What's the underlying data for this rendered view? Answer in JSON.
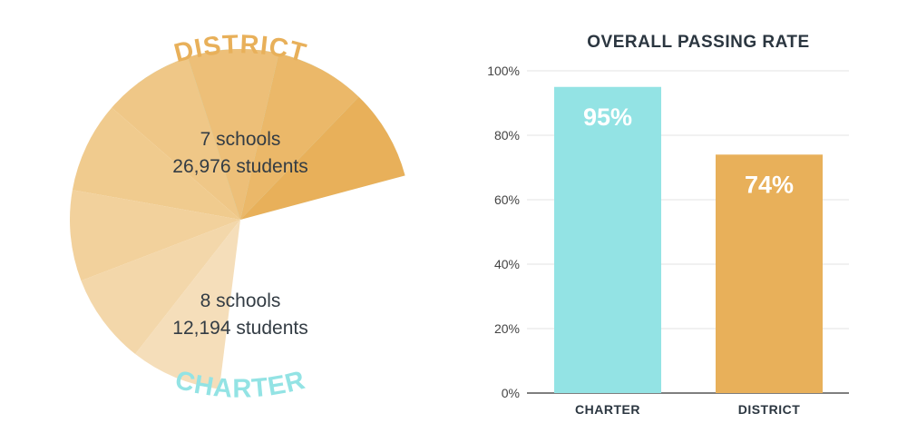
{
  "chart_data": [
    {
      "type": "pie",
      "labels": [
        "DISTRICT",
        "CHARTER"
      ],
      "slices": [
        {
          "name": "DISTRICT",
          "schools_text": "7 schools",
          "students_text": "26,976 students",
          "schools": 7,
          "students": 26976,
          "color": "#e8b05a"
        },
        {
          "name": "CHARTER",
          "schools_text": "8 schools",
          "students_text": "12,194 students",
          "schools": 8,
          "students": 12194,
          "color": "#93e3e4"
        }
      ],
      "sub_slice_colors": {
        "district": [
          "#e8b05a",
          "#ebb869",
          "#edbf78",
          "#efc787",
          "#f0cb8e",
          "#f2d19c",
          "#f3d7aa",
          "#f5deba"
        ],
        "charter": [
          "#93e3e4",
          "#9ce5e6",
          "#a5e7e8",
          "#ade9ea",
          "#b5ebec",
          "#beeeee",
          "#c8f0f1",
          "#d2f3f3",
          "#ddf6f7"
        ]
      }
    },
    {
      "type": "bar",
      "title": "OVERALL PASSING RATE",
      "categories": [
        "CHARTER",
        "DISTRICT"
      ],
      "values": [
        95,
        74
      ],
      "value_labels": [
        "95%",
        "74%"
      ],
      "colors": [
        "#93e3e4",
        "#e8b05a"
      ],
      "ylim": [
        0,
        100
      ],
      "yticks": [
        "0%",
        "20%",
        "40%",
        "60%",
        "80%",
        "100%"
      ],
      "ytick_values": [
        0,
        20,
        40,
        60,
        80,
        100
      ],
      "grid": true
    }
  ]
}
